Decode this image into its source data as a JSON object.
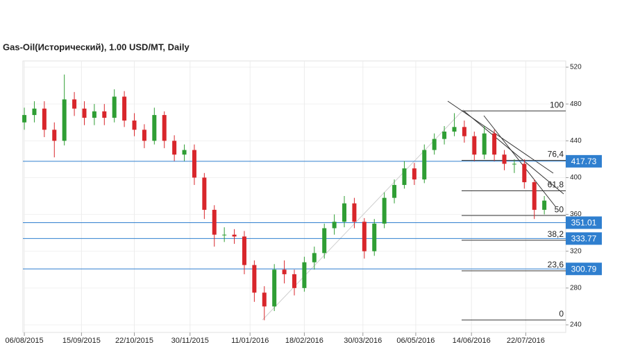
{
  "chart_data": {
    "type": "candlestick",
    "title": "Gas-Oil(Исторический), 1.00 USD/MT, Daily",
    "x": [
      "06/08/2015",
      "13/08/2015",
      "20/08/2015",
      "27/08/2015",
      "03/09/2015",
      "10/09/2015",
      "17/09/2015",
      "24/09/2015",
      "01/10/2015",
      "08/10/2015",
      "15/10/2015",
      "22/10/2015",
      "29/10/2015",
      "05/11/2015",
      "12/11/2015",
      "19/11/2015",
      "26/11/2015",
      "03/12/2015",
      "10/12/2015",
      "17/12/2015",
      "24/12/2015",
      "31/12/2015",
      "07/01/2016",
      "14/01/2016",
      "21/01/2016",
      "28/01/2016",
      "04/02/2016",
      "11/02/2016",
      "18/02/2016",
      "25/02/2016",
      "03/03/2016",
      "10/03/2016",
      "17/03/2016",
      "24/03/2016",
      "31/03/2016",
      "07/04/2016",
      "14/04/2016",
      "21/04/2016",
      "28/04/2016",
      "05/05/2016",
      "12/05/2016",
      "19/05/2016",
      "26/05/2016",
      "02/06/2016",
      "09/06/2016",
      "16/06/2016",
      "23/06/2016",
      "30/06/2016",
      "07/07/2016",
      "14/07/2016",
      "21/07/2016",
      "28/07/2016",
      "04/08/2016"
    ],
    "open": [
      460,
      468,
      475,
      452,
      440,
      485,
      475,
      465,
      472,
      465,
      488,
      462,
      452,
      440,
      468,
      440,
      425,
      430,
      400,
      365,
      338,
      338,
      336,
      305,
      275,
      260,
      300,
      295,
      280,
      308,
      318,
      345,
      352,
      372,
      352,
      320,
      350,
      378,
      392,
      410,
      398,
      430,
      442,
      450,
      455,
      445,
      425,
      448,
      425,
      415,
      415,
      395,
      365
    ],
    "high": [
      476,
      483,
      483,
      460,
      512,
      493,
      483,
      480,
      480,
      496,
      494,
      470,
      458,
      476,
      472,
      446,
      436,
      436,
      405,
      370,
      346,
      344,
      342,
      310,
      282,
      306,
      310,
      300,
      314,
      325,
      350,
      360,
      380,
      378,
      356,
      355,
      384,
      398,
      418,
      416,
      436,
      448,
      456,
      470,
      462,
      450,
      456,
      452,
      430,
      420,
      420,
      398,
      380
    ],
    "low": [
      452,
      460,
      444,
      422,
      435,
      467,
      457,
      457,
      457,
      460,
      455,
      445,
      432,
      436,
      432,
      418,
      418,
      392,
      355,
      325,
      330,
      328,
      295,
      265,
      245,
      255,
      285,
      272,
      276,
      300,
      312,
      338,
      346,
      345,
      312,
      315,
      345,
      372,
      388,
      392,
      394,
      425,
      436,
      445,
      438,
      418,
      420,
      418,
      408,
      405,
      388,
      355,
      360
    ],
    "close": [
      468,
      475,
      452,
      440,
      485,
      475,
      465,
      472,
      465,
      488,
      462,
      452,
      440,
      468,
      440,
      425,
      430,
      400,
      365,
      338,
      338,
      336,
      305,
      275,
      260,
      300,
      295,
      280,
      308,
      318,
      345,
      352,
      372,
      352,
      320,
      350,
      378,
      392,
      410,
      398,
      430,
      442,
      450,
      455,
      445,
      425,
      448,
      425,
      415,
      415,
      395,
      365,
      375
    ],
    "up_color": "#2f9e34",
    "down_color": "#d8262b",
    "xlim": [
      "05/08/2015",
      "19/08/2016"
    ],
    "xticks": [
      "06/08/2015",
      "15/09/2015",
      "22/10/2015",
      "30/11/2015",
      "11/01/2016",
      "18/02/2016",
      "30/03/2016",
      "06/05/2016",
      "14/06/2016",
      "22/07/2016"
    ],
    "ylim": [
      240,
      520
    ],
    "yticks": [
      240,
      280,
      320,
      360,
      400,
      440,
      480,
      520
    ],
    "price_lines": [
      417.73,
      351.01,
      333.77,
      300.79
    ],
    "price_line_color": "#2f7fcf",
    "fibonacci": [
      {
        "label": "100",
        "value": 472.5
      },
      {
        "label": "76,4",
        "value": 418.8
      },
      {
        "label": "61,8",
        "value": 385.6
      },
      {
        "label": "50",
        "value": 358.8
      },
      {
        "label": "38,2",
        "value": 331.9
      },
      {
        "label": "23,6",
        "value": 298.7
      },
      {
        "label": "0",
        "value": 245.3
      }
    ],
    "grid": true
  }
}
